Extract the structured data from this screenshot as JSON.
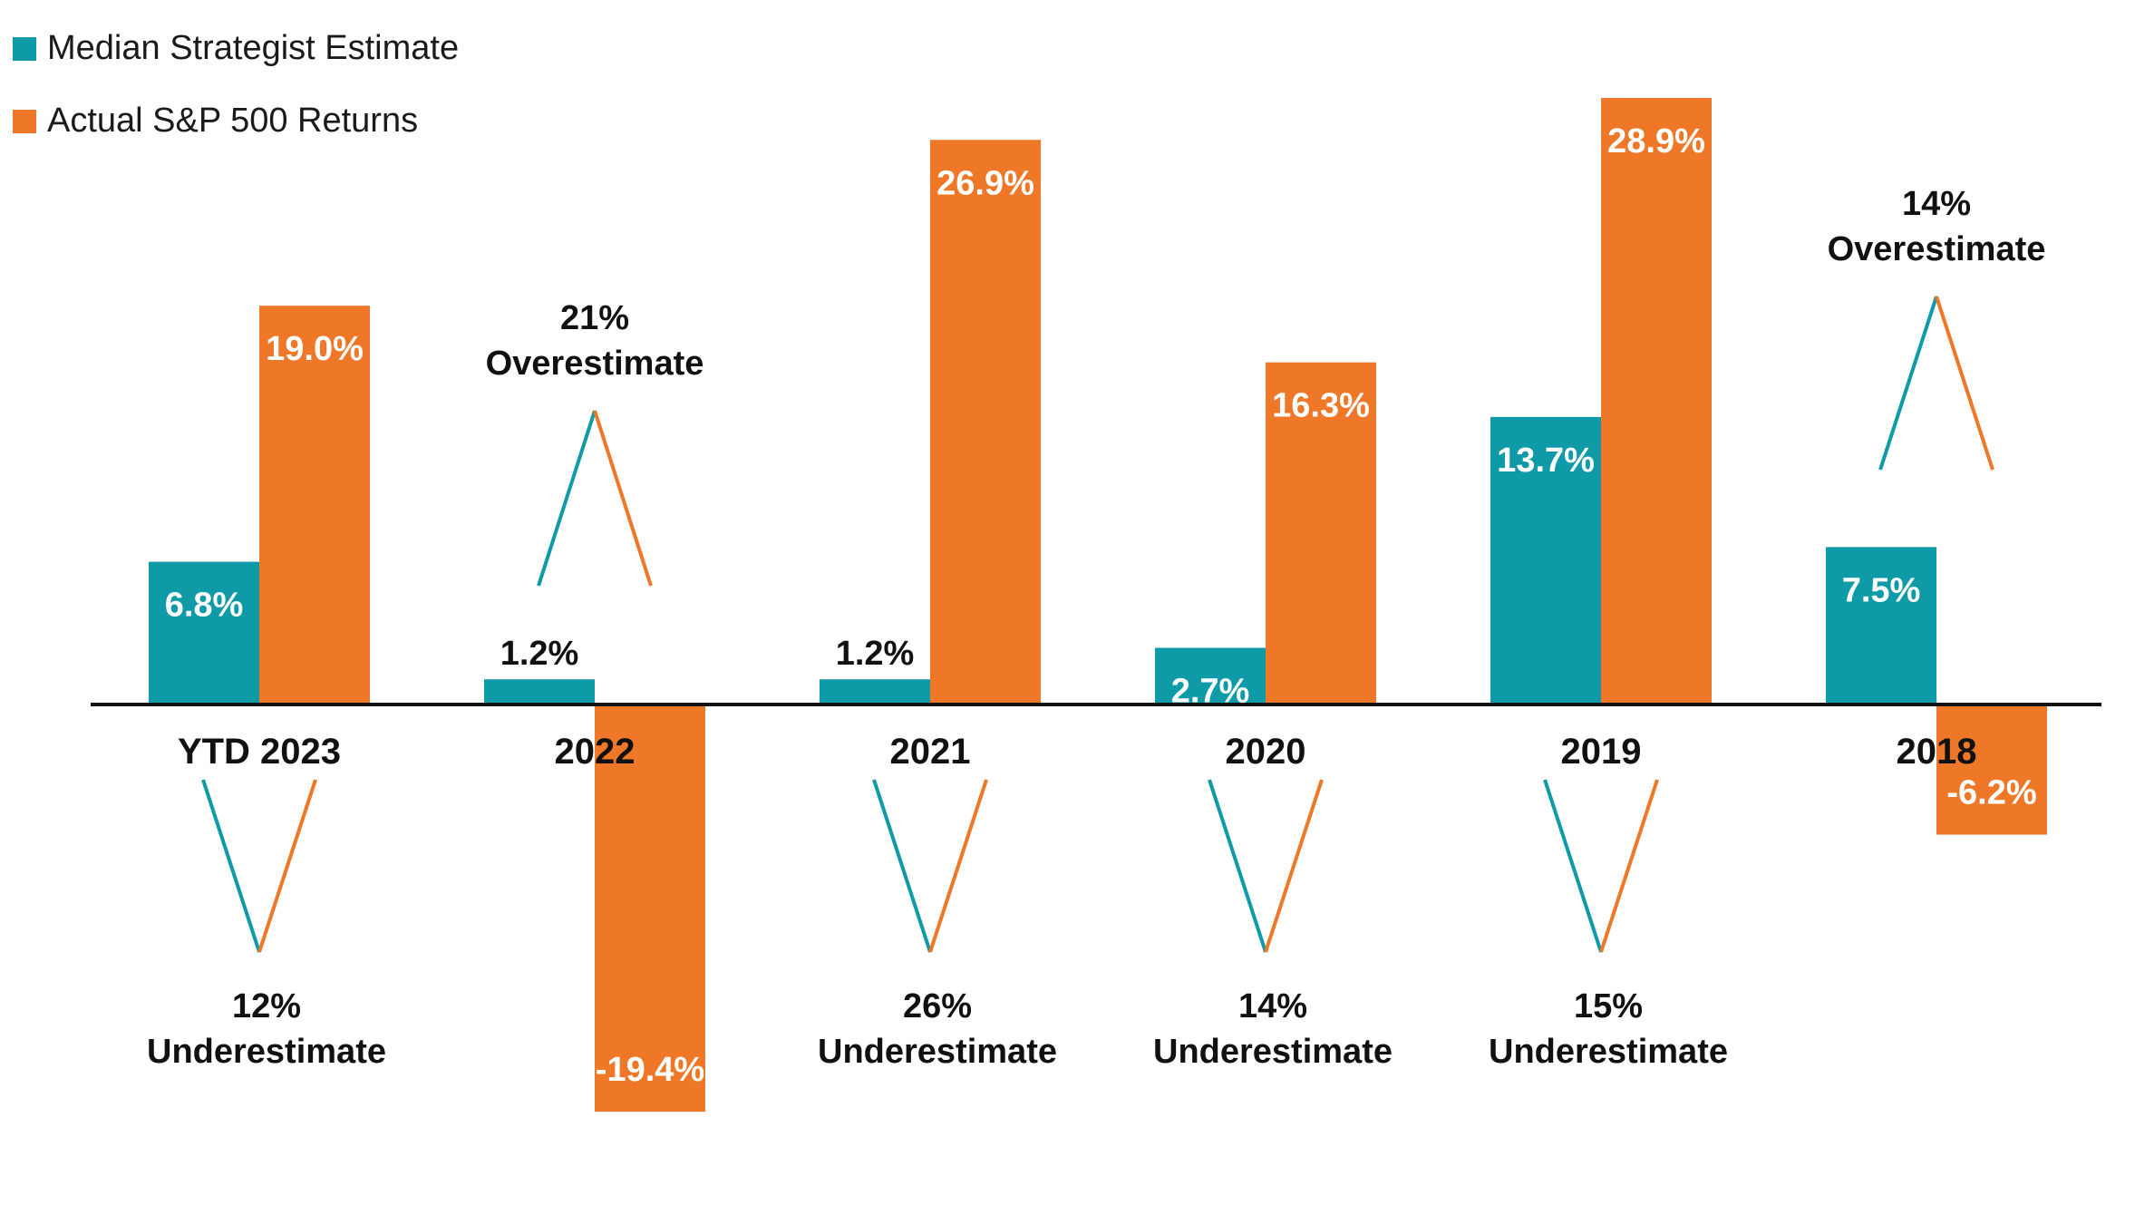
{
  "chart_data": {
    "type": "bar",
    "title": "",
    "xlabel": "",
    "ylabel": "",
    "ylim": [
      -20,
      30
    ],
    "grid": false,
    "legend_position": "top-left",
    "categories": [
      "YTD 2023",
      "2022",
      "2021",
      "2020",
      "2019",
      "2018"
    ],
    "series": [
      {
        "name": "Median Strategist Estimate",
        "color": "#0e9aa7",
        "values": [
          6.8,
          1.2,
          1.2,
          2.7,
          13.7,
          7.5
        ],
        "labels": [
          "6.8%",
          "1.2%",
          "1.2%",
          "2.7%",
          "13.7%",
          "7.5%"
        ]
      },
      {
        "name": "Actual S&P 500 Returns",
        "color": "#ef7828",
        "values": [
          19.0,
          -19.4,
          26.9,
          16.3,
          28.9,
          -6.2
        ],
        "labels": [
          "19.0%",
          "-19.4%",
          "26.9%",
          "16.3%",
          "28.9%",
          "-6.2%"
        ]
      }
    ],
    "annotations": [
      {
        "category": "YTD 2023",
        "type": "underestimate",
        "pct": "12%",
        "text": "Underestimate"
      },
      {
        "category": "2022",
        "type": "overestimate",
        "pct": "21%",
        "text": "Overestimate"
      },
      {
        "category": "2021",
        "type": "underestimate",
        "pct": "26%",
        "text": "Underestimate"
      },
      {
        "category": "2020",
        "type": "underestimate",
        "pct": "14%",
        "text": "Underestimate"
      },
      {
        "category": "2019",
        "type": "underestimate",
        "pct": "15%",
        "text": "Underestimate"
      },
      {
        "category": "2018",
        "type": "overestimate",
        "pct": "14%",
        "text": "Overestimate"
      }
    ]
  }
}
